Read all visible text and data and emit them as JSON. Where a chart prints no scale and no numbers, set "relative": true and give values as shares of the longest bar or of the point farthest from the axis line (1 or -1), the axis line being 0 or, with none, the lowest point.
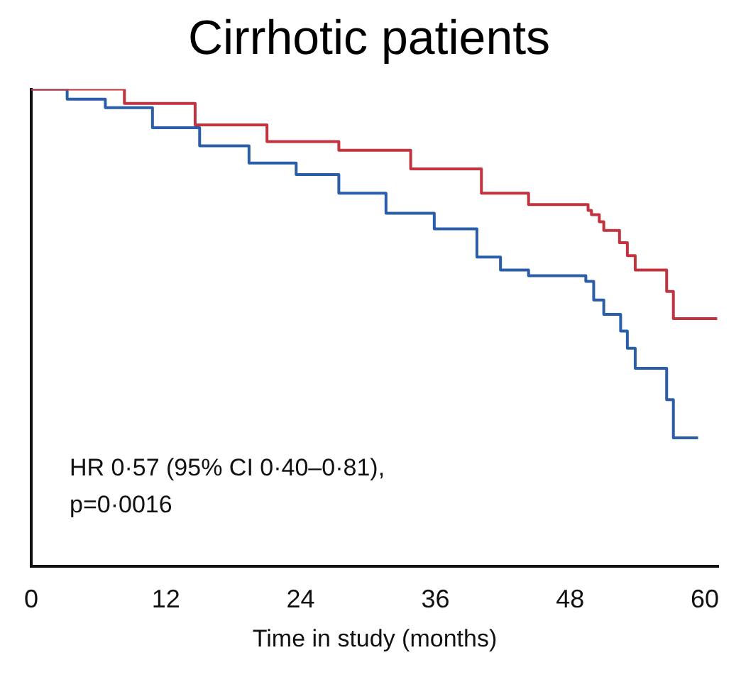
{
  "chart_data": {
    "type": "step",
    "title": "Cirrhotic patients",
    "xlabel": "Time in study (months)",
    "relative": true,
    "xlim": [
      0,
      61.2
    ],
    "xticks": [
      0,
      12,
      24,
      36,
      48,
      60
    ],
    "grid": false,
    "legend": false,
    "series": [
      {
        "color": "#c0333f",
        "x": [
          0,
          8.3,
          14.6,
          21.0,
          27.4,
          33.8,
          40.1,
          44.3,
          49.3,
          49.6,
          49.9,
          50.6,
          51.0,
          52.4,
          53.1,
          53.8,
          56.6,
          57.2,
          61.1
        ],
        "values": [
          1.0,
          0.97,
          0.925,
          0.89,
          0.872,
          0.833,
          0.782,
          0.758,
          0.758,
          0.746,
          0.737,
          0.722,
          0.704,
          0.678,
          0.651,
          0.621,
          0.576,
          0.519,
          0.519
        ]
      },
      {
        "color": "#2a5ea8",
        "x": [
          0,
          3.2,
          6.6,
          10.8,
          15.0,
          19.4,
          23.6,
          27.4,
          31.6,
          35.9,
          39.7,
          41.8,
          44.3,
          49.3,
          49.4,
          50.1,
          51.0,
          52.5,
          53.1,
          53.8,
          56.6,
          57.2,
          59.4
        ],
        "values": [
          1.0,
          0.979,
          0.961,
          0.919,
          0.881,
          0.845,
          0.821,
          0.782,
          0.74,
          0.707,
          0.648,
          0.621,
          0.609,
          0.609,
          0.597,
          0.558,
          0.528,
          0.493,
          0.457,
          0.415,
          0.349,
          0.269,
          0.269
        ]
      }
    ],
    "annotations": [
      "HR 0·57 (95% CI 0·40–0·81),",
      "p=0·0016"
    ]
  }
}
